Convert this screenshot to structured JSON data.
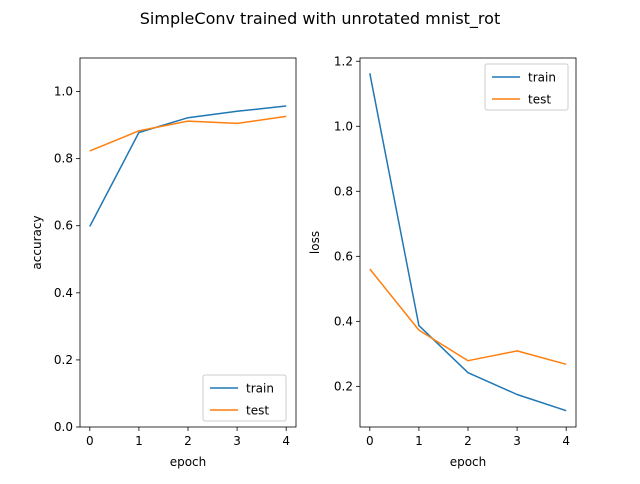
{
  "title": "SimpleConv trained with unrotated mnist_rot",
  "colors": {
    "train": "#1f77b4",
    "test": "#ff7f0e",
    "axis": "#000000"
  },
  "chart_data": [
    {
      "type": "line",
      "xlabel": "epoch",
      "ylabel": "accuracy",
      "x": [
        0,
        1,
        2,
        3,
        4
      ],
      "xticks": [
        "0",
        "1",
        "2",
        "3",
        "4"
      ],
      "yticks": [
        "0.0",
        "0.2",
        "0.4",
        "0.6",
        "0.8",
        "1.0"
      ],
      "xlim": [
        -0.2,
        4.2
      ],
      "ylim": [
        0,
        1.1
      ],
      "legend_loc": "lower right",
      "series": [
        {
          "name": "train",
          "values": [
            0.598,
            0.878,
            0.922,
            0.941,
            0.957
          ]
        },
        {
          "name": "test",
          "values": [
            0.823,
            0.883,
            0.912,
            0.905,
            0.926
          ]
        }
      ]
    },
    {
      "type": "line",
      "xlabel": "epoch",
      "ylabel": "loss",
      "x": [
        0,
        1,
        2,
        3,
        4
      ],
      "xticks": [
        "0",
        "1",
        "2",
        "3",
        "4"
      ],
      "yticks": [
        "0.2",
        "0.4",
        "0.6",
        "0.8",
        "1.0",
        "1.2"
      ],
      "xlim": [
        -0.2,
        4.2
      ],
      "ylim": [
        0.075,
        1.21
      ],
      "legend_loc": "upper right",
      "series": [
        {
          "name": "train",
          "values": [
            1.163,
            0.387,
            0.242,
            0.175,
            0.125
          ]
        },
        {
          "name": "test",
          "values": [
            0.561,
            0.373,
            0.279,
            0.309,
            0.268
          ]
        }
      ]
    }
  ]
}
